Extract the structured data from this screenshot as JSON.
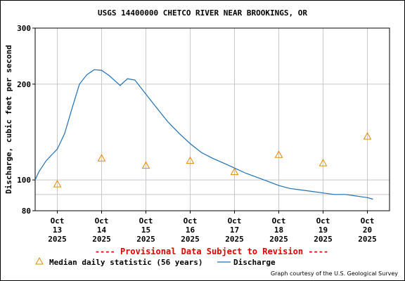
{
  "chart_data": {
    "type": "line",
    "title": "USGS 14400000 CHETCO RIVER NEAR BROOKINGS, OR",
    "ylabel": "Discharge, cubic feet per second",
    "xlabel": "",
    "y_scale": "log",
    "ylim": [
      80,
      300
    ],
    "y_ticks": [
      80,
      100,
      200,
      300
    ],
    "y_gridlines": [
      80,
      90,
      100,
      200,
      300
    ],
    "x_range_days": [
      "2025-10-12 12:00",
      "2025-10-20 12:00"
    ],
    "x_ticks": [
      {
        "month": "Oct",
        "day": "13",
        "year": "2025",
        "date": "2025-10-13"
      },
      {
        "month": "Oct",
        "day": "14",
        "year": "2025",
        "date": "2025-10-14"
      },
      {
        "month": "Oct",
        "day": "15",
        "year": "2025",
        "date": "2025-10-15"
      },
      {
        "month": "Oct",
        "day": "16",
        "year": "2025",
        "date": "2025-10-16"
      },
      {
        "month": "Oct",
        "day": "17",
        "year": "2025",
        "date": "2025-10-17"
      },
      {
        "month": "Oct",
        "day": "18",
        "year": "2025",
        "date": "2025-10-18"
      },
      {
        "month": "Oct",
        "day": "19",
        "year": "2025",
        "date": "2025-10-19"
      },
      {
        "month": "Oct",
        "day": "20",
        "year": "2025",
        "date": "2025-10-20"
      }
    ],
    "grid": true,
    "series": [
      {
        "name": "Discharge",
        "color": "#1f6fb5",
        "style": "line",
        "points": [
          [
            "2025-10-12 12:00",
            100
          ],
          [
            "2025-10-12 14:00",
            106
          ],
          [
            "2025-10-12 18:00",
            115
          ],
          [
            "2025-10-13 00:00",
            125
          ],
          [
            "2025-10-13 04:00",
            140
          ],
          [
            "2025-10-13 08:00",
            168
          ],
          [
            "2025-10-13 12:00",
            200
          ],
          [
            "2025-10-13 16:00",
            214
          ],
          [
            "2025-10-13 20:00",
            222
          ],
          [
            "2025-10-14 00:00",
            221
          ],
          [
            "2025-10-14 04:00",
            213
          ],
          [
            "2025-10-14 08:00",
            203
          ],
          [
            "2025-10-14 10:00",
            198
          ],
          [
            "2025-10-14 14:00",
            208
          ],
          [
            "2025-10-14 18:00",
            206
          ],
          [
            "2025-10-15 00:00",
            186
          ],
          [
            "2025-10-15 06:00",
            168
          ],
          [
            "2025-10-15 12:00",
            152
          ],
          [
            "2025-10-15 18:00",
            140
          ],
          [
            "2025-10-16 00:00",
            130
          ],
          [
            "2025-10-16 06:00",
            122
          ],
          [
            "2025-10-16 12:00",
            117
          ],
          [
            "2025-10-16 18:00",
            113
          ],
          [
            "2025-10-17 00:00",
            109
          ],
          [
            "2025-10-17 06:00",
            105
          ],
          [
            "2025-10-17 12:00",
            102
          ],
          [
            "2025-10-17 18:00",
            99
          ],
          [
            "2025-10-18 00:00",
            96
          ],
          [
            "2025-10-18 06:00",
            94
          ],
          [
            "2025-10-18 12:00",
            93
          ],
          [
            "2025-10-18 18:00",
            92
          ],
          [
            "2025-10-19 00:00",
            91
          ],
          [
            "2025-10-19 06:00",
            90
          ],
          [
            "2025-10-19 12:00",
            90
          ],
          [
            "2025-10-19 18:00",
            89
          ],
          [
            "2025-10-20 00:00",
            88
          ],
          [
            "2025-10-20 03:00",
            87
          ]
        ]
      },
      {
        "name": "Median daily statistic (56 years)",
        "color": "#e08a00",
        "style": "triangle-markers",
        "points": [
          [
            "2025-10-13 00:00",
            97
          ],
          [
            "2025-10-14 00:00",
            117
          ],
          [
            "2025-10-15 00:00",
            111
          ],
          [
            "2025-10-16 00:00",
            115
          ],
          [
            "2025-10-17 00:00",
            106
          ],
          [
            "2025-10-18 00:00",
            120
          ],
          [
            "2025-10-19 00:00",
            113
          ],
          [
            "2025-10-20 00:00",
            137
          ]
        ]
      }
    ],
    "notice": "---- Provisional Data Subject to Revision ----",
    "legend": [
      {
        "label": "Median daily statistic (56 years)",
        "marker": "triangle"
      },
      {
        "label": "Discharge",
        "marker": "line"
      }
    ],
    "legend_position": "bottom",
    "credit": "Graph courtesy of the U.S. Geological Survey"
  }
}
